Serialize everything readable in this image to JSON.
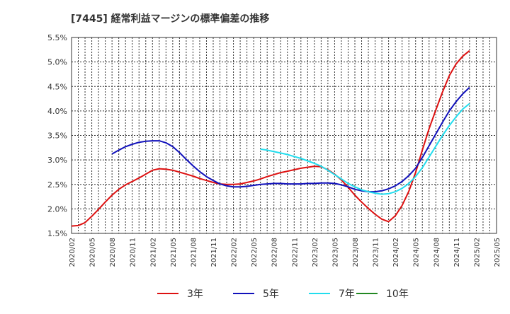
{
  "chart_data": {
    "type": "line",
    "title": "[7445]  経常利益マージンの標準偏差の推移",
    "xlabel": "",
    "ylabel": "",
    "ylim": [
      1.5,
      5.5
    ],
    "y_ticks": [
      "1.5%",
      "2.0%",
      "2.5%",
      "3.0%",
      "3.5%",
      "4.0%",
      "4.5%",
      "5.0%",
      "5.5%"
    ],
    "x_ticks": [
      "2020/02",
      "2020/05",
      "2020/08",
      "2020/11",
      "2021/02",
      "2021/05",
      "2021/08",
      "2021/11",
      "2022/02",
      "2022/05",
      "2022/08",
      "2022/11",
      "2023/02",
      "2023/05",
      "2023/08",
      "2023/11",
      "2024/02",
      "2024/05",
      "2024/08",
      "2024/11",
      "2025/02",
      "2025/05"
    ],
    "grid": true,
    "legend_position": "bottom",
    "series": [
      {
        "name": "3年",
        "color": "#dd1111",
        "points": [
          [
            "2020/02",
            1.65
          ],
          [
            "2020/03",
            1.66
          ],
          [
            "2020/04",
            1.72
          ],
          [
            "2020/05",
            1.85
          ],
          [
            "2020/06",
            1.99
          ],
          [
            "2020/07",
            2.14
          ],
          [
            "2020/08",
            2.28
          ],
          [
            "2020/09",
            2.4
          ],
          [
            "2020/10",
            2.49
          ],
          [
            "2020/11",
            2.56
          ],
          [
            "2020/12",
            2.63
          ],
          [
            "2021/01",
            2.71
          ],
          [
            "2021/02",
            2.79
          ],
          [
            "2021/03",
            2.82
          ],
          [
            "2021/04",
            2.81
          ],
          [
            "2021/05",
            2.79
          ],
          [
            "2021/06",
            2.75
          ],
          [
            "2021/07",
            2.71
          ],
          [
            "2021/08",
            2.67
          ],
          [
            "2021/09",
            2.62
          ],
          [
            "2021/10",
            2.58
          ],
          [
            "2021/11",
            2.54
          ],
          [
            "2021/12",
            2.51
          ],
          [
            "2022/01",
            2.5
          ],
          [
            "2022/02",
            2.5
          ],
          [
            "2022/03",
            2.51
          ],
          [
            "2022/04",
            2.54
          ],
          [
            "2022/05",
            2.57
          ],
          [
            "2022/06",
            2.61
          ],
          [
            "2022/07",
            2.66
          ],
          [
            "2022/08",
            2.7
          ],
          [
            "2022/09",
            2.74
          ],
          [
            "2022/10",
            2.77
          ],
          [
            "2022/11",
            2.8
          ],
          [
            "2022/12",
            2.83
          ],
          [
            "2023/01",
            2.85
          ],
          [
            "2023/02",
            2.87
          ],
          [
            "2023/03",
            2.86
          ],
          [
            "2023/04",
            2.8
          ],
          [
            "2023/05",
            2.71
          ],
          [
            "2023/06",
            2.59
          ],
          [
            "2023/07",
            2.44
          ],
          [
            "2023/08",
            2.28
          ],
          [
            "2023/09",
            2.14
          ],
          [
            "2023/10",
            2.01
          ],
          [
            "2023/11",
            1.89
          ],
          [
            "2023/12",
            1.79
          ],
          [
            "2024/01",
            1.74
          ],
          [
            "2024/02",
            1.86
          ],
          [
            "2024/03",
            2.07
          ],
          [
            "2024/04",
            2.36
          ],
          [
            "2024/05",
            2.74
          ],
          [
            "2024/06",
            3.2
          ],
          [
            "2024/07",
            3.64
          ],
          [
            "2024/08",
            4.02
          ],
          [
            "2024/09",
            4.39
          ],
          [
            "2024/10",
            4.72
          ],
          [
            "2024/11",
            4.96
          ],
          [
            "2024/12",
            5.12
          ],
          [
            "2025/01",
            5.23
          ]
        ]
      },
      {
        "name": "5年",
        "color": "#1111bb",
        "points": [
          [
            "2020/08",
            3.12
          ],
          [
            "2020/09",
            3.2
          ],
          [
            "2020/10",
            3.27
          ],
          [
            "2020/11",
            3.32
          ],
          [
            "2020/12",
            3.36
          ],
          [
            "2021/01",
            3.38
          ],
          [
            "2021/02",
            3.39
          ],
          [
            "2021/03",
            3.39
          ],
          [
            "2021/04",
            3.35
          ],
          [
            "2021/05",
            3.27
          ],
          [
            "2021/06",
            3.15
          ],
          [
            "2021/07",
            3.01
          ],
          [
            "2021/08",
            2.88
          ],
          [
            "2021/09",
            2.76
          ],
          [
            "2021/10",
            2.66
          ],
          [
            "2021/11",
            2.58
          ],
          [
            "2021/12",
            2.51
          ],
          [
            "2022/01",
            2.47
          ],
          [
            "2022/02",
            2.45
          ],
          [
            "2022/03",
            2.45
          ],
          [
            "2022/04",
            2.46
          ],
          [
            "2022/05",
            2.48
          ],
          [
            "2022/06",
            2.5
          ],
          [
            "2022/07",
            2.51
          ],
          [
            "2022/08",
            2.52
          ],
          [
            "2022/09",
            2.52
          ],
          [
            "2022/10",
            2.51
          ],
          [
            "2022/11",
            2.51
          ],
          [
            "2022/12",
            2.51
          ],
          [
            "2023/01",
            2.52
          ],
          [
            "2023/02",
            2.52
          ],
          [
            "2023/03",
            2.53
          ],
          [
            "2023/04",
            2.53
          ],
          [
            "2023/05",
            2.52
          ],
          [
            "2023/06",
            2.49
          ],
          [
            "2023/07",
            2.45
          ],
          [
            "2023/08",
            2.4
          ],
          [
            "2023/09",
            2.37
          ],
          [
            "2023/10",
            2.35
          ],
          [
            "2023/11",
            2.35
          ],
          [
            "2023/12",
            2.37
          ],
          [
            "2024/01",
            2.41
          ],
          [
            "2024/02",
            2.47
          ],
          [
            "2024/03",
            2.56
          ],
          [
            "2024/04",
            2.68
          ],
          [
            "2024/05",
            2.83
          ],
          [
            "2024/06",
            3.05
          ],
          [
            "2024/07",
            3.29
          ],
          [
            "2024/08",
            3.53
          ],
          [
            "2024/09",
            3.77
          ],
          [
            "2024/10",
            4.0
          ],
          [
            "2024/11",
            4.19
          ],
          [
            "2024/12",
            4.35
          ],
          [
            "2025/01",
            4.48
          ]
        ]
      },
      {
        "name": "7年",
        "color": "#22ddee",
        "points": [
          [
            "2022/06",
            3.22
          ],
          [
            "2022/07",
            3.2
          ],
          [
            "2022/08",
            3.17
          ],
          [
            "2022/09",
            3.14
          ],
          [
            "2022/10",
            3.11
          ],
          [
            "2022/11",
            3.07
          ],
          [
            "2022/12",
            3.03
          ],
          [
            "2023/01",
            2.98
          ],
          [
            "2023/02",
            2.93
          ],
          [
            "2023/03",
            2.87
          ],
          [
            "2023/04",
            2.79
          ],
          [
            "2023/05",
            2.7
          ],
          [
            "2023/06",
            2.61
          ],
          [
            "2023/07",
            2.52
          ],
          [
            "2023/08",
            2.45
          ],
          [
            "2023/09",
            2.39
          ],
          [
            "2023/10",
            2.35
          ],
          [
            "2023/11",
            2.32
          ],
          [
            "2023/12",
            2.3
          ],
          [
            "2024/01",
            2.31
          ],
          [
            "2024/02",
            2.35
          ],
          [
            "2024/03",
            2.42
          ],
          [
            "2024/04",
            2.52
          ],
          [
            "2024/05",
            2.66
          ],
          [
            "2024/06",
            2.84
          ],
          [
            "2024/07",
            3.06
          ],
          [
            "2024/08",
            3.28
          ],
          [
            "2024/09",
            3.5
          ],
          [
            "2024/10",
            3.7
          ],
          [
            "2024/11",
            3.88
          ],
          [
            "2024/12",
            4.04
          ],
          [
            "2025/01",
            4.15
          ]
        ]
      },
      {
        "name": "10年",
        "color": "#228822",
        "points": []
      }
    ]
  }
}
